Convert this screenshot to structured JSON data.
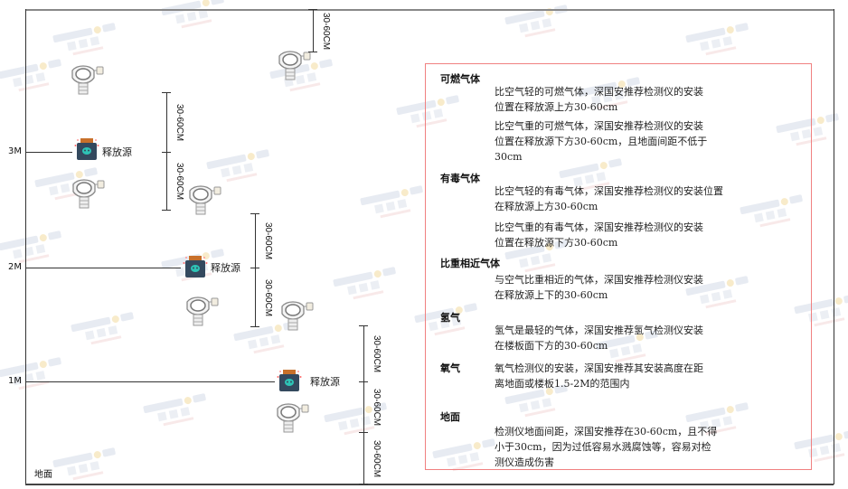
{
  "watermark": {
    "brand": "SINGOAN",
    "brand_cn": "深国安"
  },
  "diagram": {
    "levels": [
      {
        "label": "3M"
      },
      {
        "label": "2M"
      },
      {
        "label": "1M"
      }
    ],
    "floor_label": "地面",
    "source_label": "释放源",
    "dimension_label": "30-60CM"
  },
  "panel": {
    "border_color": "#f08080",
    "sections": [
      {
        "heading": "可燃气体",
        "items": [
          "比空气轻的可燃气体，深国安推荐检测仪的安装\n位置在释放源上方30-60cm",
          "比空气重的可燃气体，深国安推荐检测仪的安装\n位置在释放源下方30-60cm，且地面间距不低于\n30cm"
        ]
      },
      {
        "heading": "有毒气体",
        "items": [
          "比空气轻的有毒气体，深国安推荐检测仪的安装位置\n在释放源上方30-60cm",
          "比空气重的有毒气体，深国安推荐检测仪的安装\n位置在释放源下方30-60cm"
        ]
      },
      {
        "heading": "比重相近气体",
        "items": [
          "与空气比重相近的气体，深国安推荐检测仪安装\n在释放源上下的30-60cm"
        ]
      },
      {
        "heading": "氢气",
        "items": [
          "氢气是最轻的气体，深国安推荐氢气检测仪安装\n在楼板面下方的30-60cm"
        ]
      },
      {
        "heading": "氧气",
        "items": [
          "氧气检测仪的安装，深国安推荐其安装高度在距\n离地面或楼板1.5-2M的范围内"
        ]
      },
      {
        "heading": "地面",
        "items": [
          "检测仪地面间距，深国安推荐在30-60cm，且不得\n小于30cm，因为过低容易水溅腐蚀等，容易对检\n测仪造成伤害"
        ]
      }
    ]
  }
}
